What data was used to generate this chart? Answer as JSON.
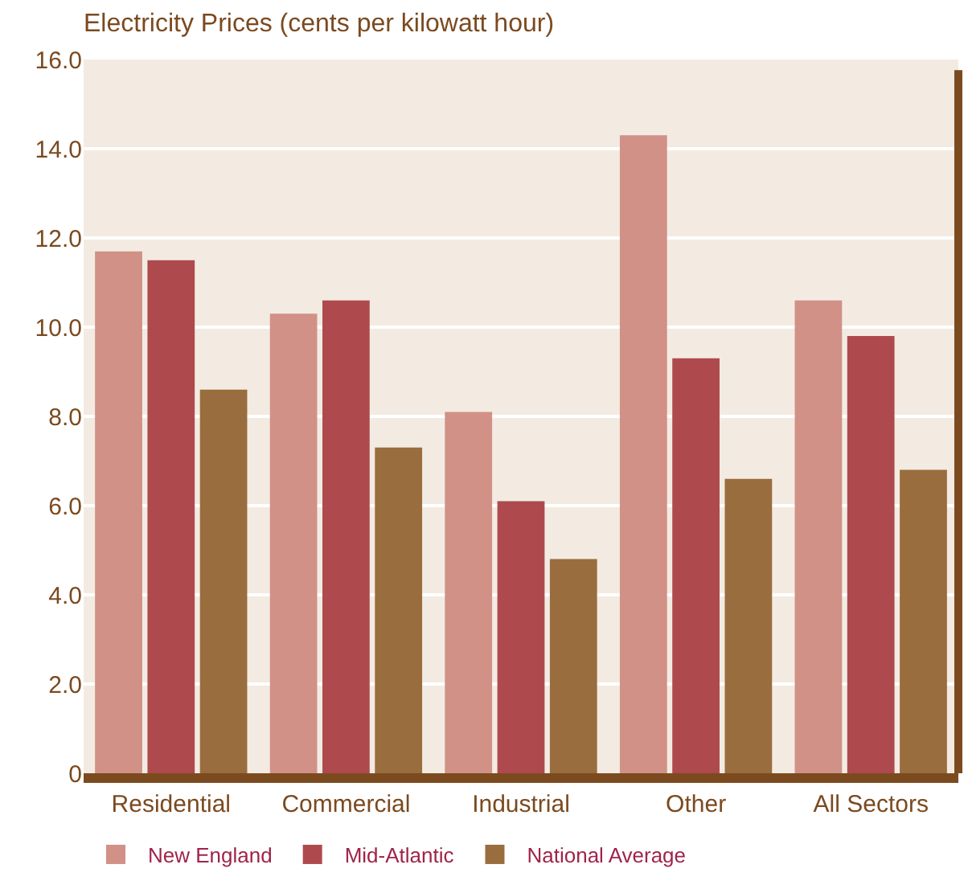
{
  "chart_data": {
    "type": "bar",
    "title": "Electricity Prices (cents per kilowatt hour)",
    "categories": [
      "Residential",
      "Commercial",
      "Industrial",
      "Other",
      "All Sectors"
    ],
    "series": [
      {
        "name": "New England",
        "color": "#d19187",
        "values": [
          11.7,
          10.3,
          8.1,
          14.3,
          10.6
        ]
      },
      {
        "name": "Mid-Atlantic",
        "color": "#ae4a4d",
        "values": [
          11.5,
          10.6,
          6.1,
          9.3,
          9.8
        ]
      },
      {
        "name": "National Average",
        "color": "#996d3d",
        "values": [
          8.6,
          7.3,
          4.8,
          6.6,
          6.8
        ]
      }
    ],
    "ylim": [
      0,
      16
    ],
    "yticks": [
      0,
      {
        "value": 2,
        "label": "2.0"
      },
      {
        "value": 4,
        "label": "4.0"
      },
      {
        "value": 6,
        "label": "6.0"
      },
      {
        "value": 8,
        "label": "8.0"
      },
      {
        "value": 10,
        "label": "10.0"
      },
      {
        "value": 12,
        "label": "12.0"
      },
      {
        "value": 14,
        "label": "14.0"
      },
      {
        "value": 16,
        "label": "16.0"
      }
    ],
    "grid": "y",
    "legend": "bottom"
  }
}
